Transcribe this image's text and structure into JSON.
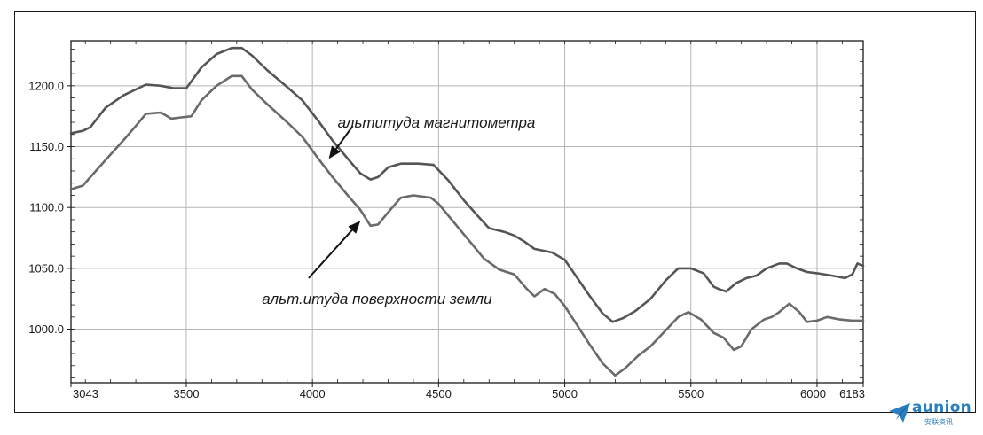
{
  "chart_data": {
    "type": "line",
    "title": "",
    "xlabel": "",
    "ylabel": "",
    "xlim": [
      3043,
      6183
    ],
    "ylim": [
      956,
      1237
    ],
    "x_ticks": [
      3043,
      3500,
      4000,
      4500,
      5000,
      5500,
      6000,
      6183
    ],
    "x_tick_labels": [
      "3043",
      "3500",
      "4000",
      "4500",
      "5000",
      "5500",
      "6000",
      "6183"
    ],
    "y_ticks": [
      1000,
      1050,
      1100,
      1150,
      1200
    ],
    "y_tick_labels": [
      "1000.0",
      "1050.0",
      "1100.0",
      "1150.0",
      "1200.0"
    ],
    "grid": true,
    "series": [
      {
        "name": "альтитуда магнитометра",
        "color": "#555555",
        "points": [
          [
            3043,
            1161
          ],
          [
            3090,
            1163
          ],
          [
            3120,
            1166
          ],
          [
            3180,
            1182
          ],
          [
            3250,
            1192
          ],
          [
            3340,
            1201
          ],
          [
            3400,
            1200
          ],
          [
            3450,
            1198
          ],
          [
            3500,
            1198
          ],
          [
            3560,
            1215
          ],
          [
            3620,
            1226
          ],
          [
            3680,
            1231
          ],
          [
            3720,
            1231
          ],
          [
            3760,
            1225
          ],
          [
            3820,
            1213
          ],
          [
            3900,
            1199
          ],
          [
            3960,
            1188
          ],
          [
            4020,
            1172
          ],
          [
            4080,
            1155
          ],
          [
            4140,
            1140
          ],
          [
            4190,
            1128
          ],
          [
            4230,
            1123
          ],
          [
            4260,
            1125
          ],
          [
            4300,
            1133
          ],
          [
            4350,
            1136
          ],
          [
            4420,
            1136
          ],
          [
            4480,
            1135
          ],
          [
            4540,
            1122
          ],
          [
            4600,
            1106
          ],
          [
            4660,
            1092
          ],
          [
            4700,
            1083
          ],
          [
            4760,
            1080
          ],
          [
            4800,
            1077
          ],
          [
            4840,
            1072
          ],
          [
            4880,
            1066
          ],
          [
            4950,
            1063
          ],
          [
            5000,
            1057
          ],
          [
            5050,
            1042
          ],
          [
            5100,
            1027
          ],
          [
            5150,
            1013
          ],
          [
            5190,
            1006
          ],
          [
            5230,
            1009
          ],
          [
            5280,
            1015
          ],
          [
            5340,
            1025
          ],
          [
            5400,
            1040
          ],
          [
            5450,
            1050
          ],
          [
            5500,
            1050
          ],
          [
            5550,
            1046
          ],
          [
            5590,
            1035
          ],
          [
            5610,
            1033
          ],
          [
            5640,
            1031
          ],
          [
            5680,
            1038
          ],
          [
            5720,
            1042
          ],
          [
            5760,
            1044
          ],
          [
            5800,
            1050
          ],
          [
            5850,
            1054
          ],
          [
            5880,
            1054
          ],
          [
            5920,
            1050
          ],
          [
            5960,
            1047
          ],
          [
            6000,
            1046
          ],
          [
            6060,
            1044
          ],
          [
            6110,
            1042
          ],
          [
            6140,
            1045
          ],
          [
            6160,
            1054
          ],
          [
            6183,
            1052
          ]
        ]
      },
      {
        "name": "альтитуда поверхности земли",
        "color": "#6a6a6a",
        "points": [
          [
            3043,
            1115
          ],
          [
            3090,
            1118
          ],
          [
            3120,
            1125
          ],
          [
            3180,
            1139
          ],
          [
            3250,
            1155
          ],
          [
            3300,
            1167
          ],
          [
            3340,
            1177
          ],
          [
            3400,
            1178
          ],
          [
            3440,
            1173
          ],
          [
            3480,
            1174
          ],
          [
            3520,
            1175
          ],
          [
            3560,
            1188
          ],
          [
            3620,
            1200
          ],
          [
            3680,
            1208
          ],
          [
            3720,
            1208
          ],
          [
            3760,
            1197
          ],
          [
            3820,
            1185
          ],
          [
            3900,
            1170
          ],
          [
            3960,
            1158
          ],
          [
            4020,
            1141
          ],
          [
            4080,
            1125
          ],
          [
            4140,
            1110
          ],
          [
            4190,
            1098
          ],
          [
            4230,
            1085
          ],
          [
            4260,
            1086
          ],
          [
            4300,
            1096
          ],
          [
            4350,
            1108
          ],
          [
            4400,
            1110
          ],
          [
            4470,
            1108
          ],
          [
            4500,
            1103
          ],
          [
            4560,
            1088
          ],
          [
            4620,
            1073
          ],
          [
            4680,
            1058
          ],
          [
            4740,
            1049
          ],
          [
            4800,
            1045
          ],
          [
            4850,
            1033
          ],
          [
            4880,
            1027
          ],
          [
            4920,
            1033
          ],
          [
            4960,
            1029
          ],
          [
            5000,
            1019
          ],
          [
            5050,
            1003
          ],
          [
            5100,
            987
          ],
          [
            5150,
            972
          ],
          [
            5200,
            962
          ],
          [
            5240,
            968
          ],
          [
            5290,
            978
          ],
          [
            5340,
            986
          ],
          [
            5400,
            999
          ],
          [
            5450,
            1010
          ],
          [
            5490,
            1014
          ],
          [
            5540,
            1008
          ],
          [
            5590,
            997
          ],
          [
            5630,
            993
          ],
          [
            5670,
            983
          ],
          [
            5700,
            986
          ],
          [
            5740,
            1000
          ],
          [
            5790,
            1008
          ],
          [
            5820,
            1010
          ],
          [
            5850,
            1014
          ],
          [
            5890,
            1021
          ],
          [
            5930,
            1014
          ],
          [
            5960,
            1006
          ],
          [
            6000,
            1007
          ],
          [
            6040,
            1010
          ],
          [
            6090,
            1008
          ],
          [
            6140,
            1007
          ],
          [
            6183,
            1007
          ]
        ]
      }
    ],
    "annotations": [
      {
        "text": "альтитуда магнитометра",
        "text_anchor": [
          4100,
          1170
        ],
        "arrow_from": [
          4160,
          1167
        ],
        "arrow_to": [
          4065,
          1140
        ]
      },
      {
        "text": "альт.итуда поверхности земли",
        "text_anchor": [
          3800,
          1025
        ],
        "arrow_from": [
          3985,
          1042
        ],
        "arrow_to": [
          4190,
          1089
        ]
      }
    ]
  },
  "watermark": {
    "brand": "aunion",
    "subtext": "安联资讯",
    "color": "#2a7fc0"
  }
}
